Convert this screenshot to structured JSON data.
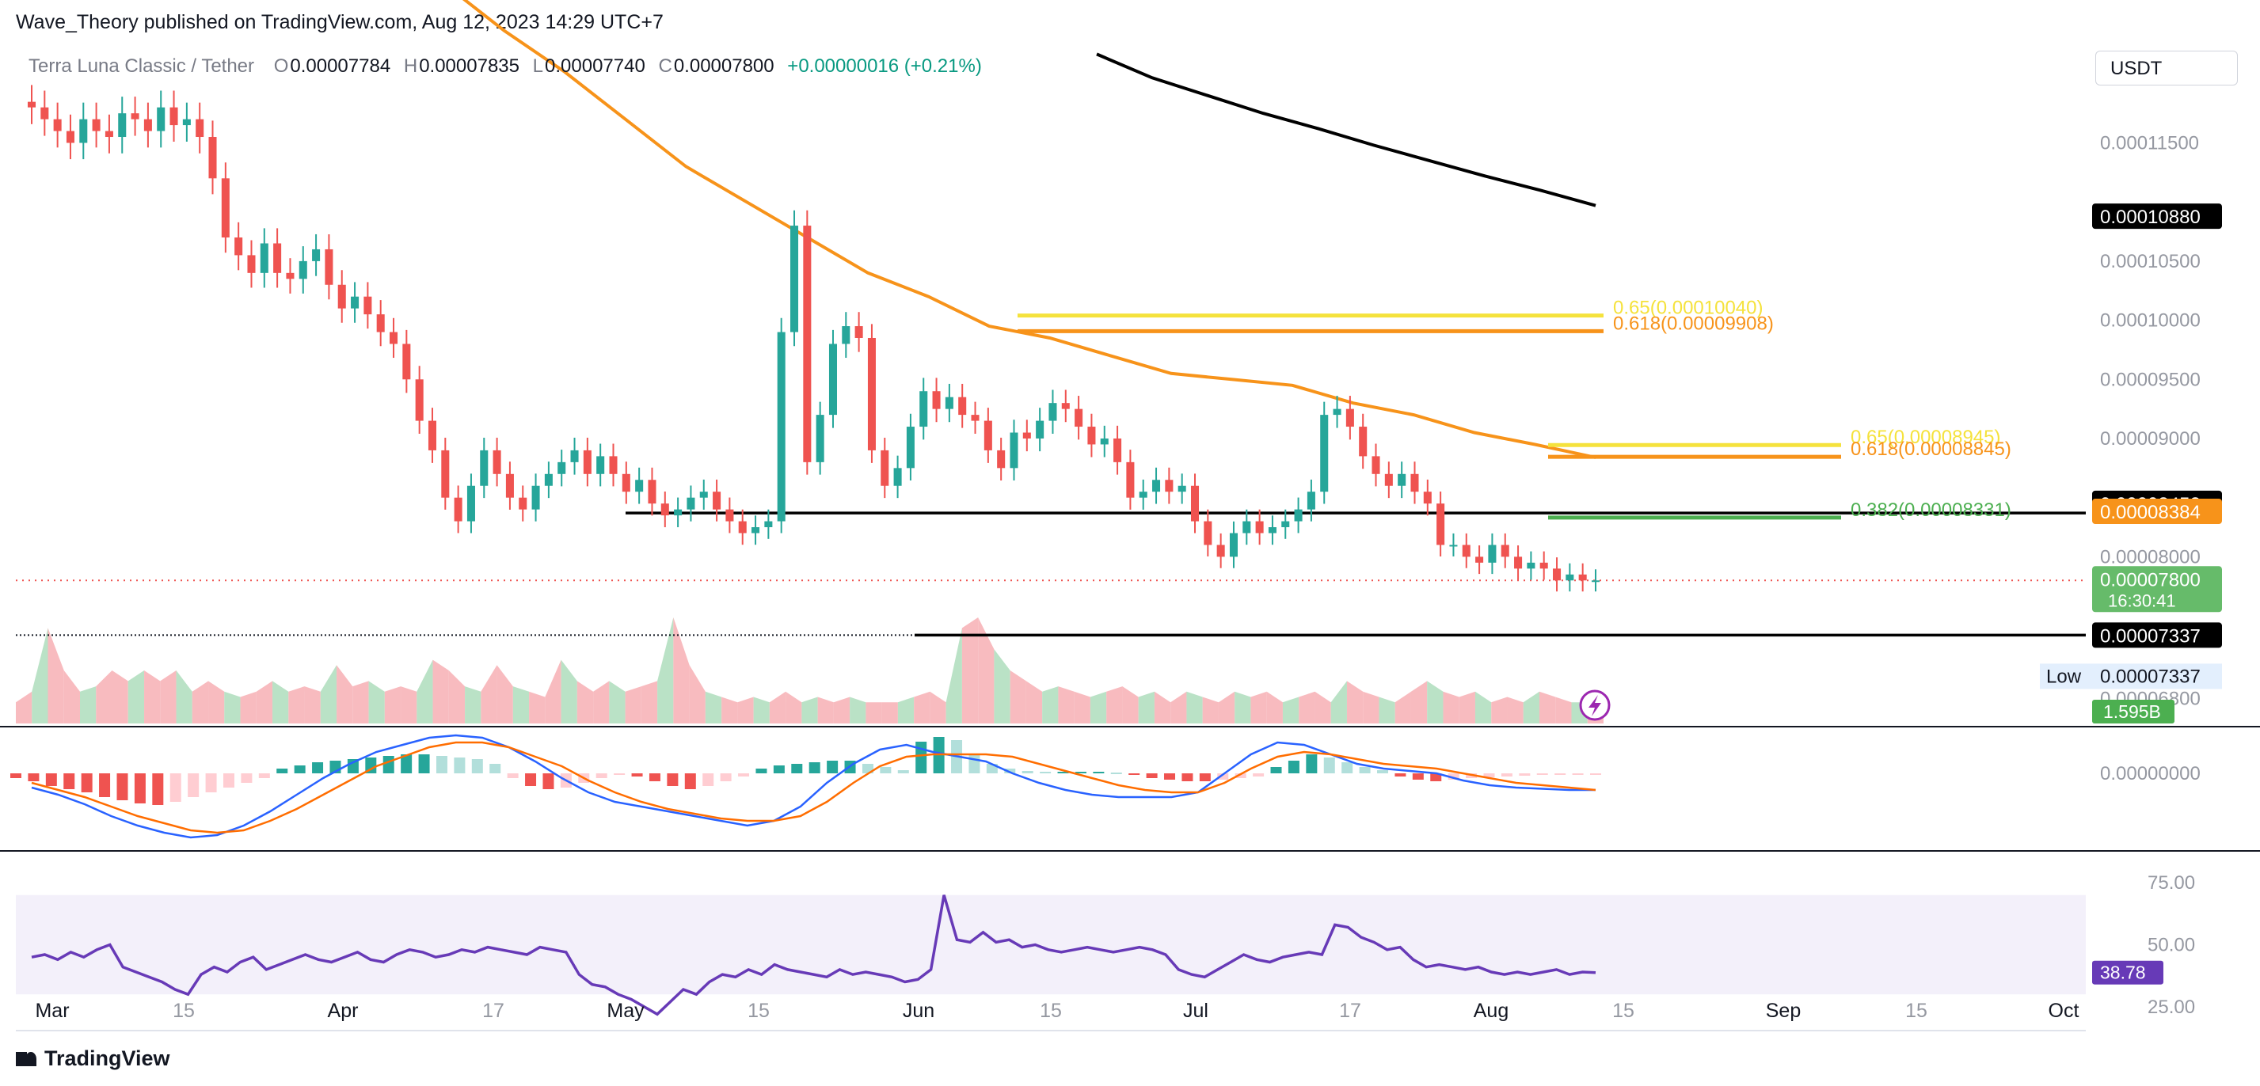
{
  "header": {
    "attribution": "Wave_Theory published on TradingView.com, Aug 12, 2023 14:29 UTC+7"
  },
  "ohlc": {
    "symbol": "Terra Luna Classic / Tether",
    "o_label": "O",
    "o": "0.00007784",
    "h_label": "H",
    "h": "0.00007835",
    "l_label": "L",
    "l": "0.00007740",
    "c_label": "C",
    "c": "0.00007800",
    "change": "+0.00000016 (+0.21%)"
  },
  "currency": "USDT",
  "footer": {
    "brand": "TradingView"
  },
  "colors": {
    "up": "#26a69a",
    "down": "#ef5350",
    "ema50": "#f7931a",
    "ema200": "#000000",
    "fib_yellow": "#f5e23c",
    "fib_orange": "#f7931a",
    "fib_green": "#4caf50",
    "macd_line": "#2962ff",
    "signal_line": "#ff6d00",
    "rsi": "#673ab7",
    "vol_up": "#b2dfc0",
    "vol_down": "#f7b4b8"
  },
  "chart_data": [
    {
      "type": "candlestick",
      "panel": "price",
      "x_axis_labels": [
        "Mar",
        "15",
        "Apr",
        "17",
        "May",
        "15",
        "Jun",
        "15",
        "Jul",
        "17",
        "Aug",
        "15",
        "Sep",
        "15",
        "Oct"
      ],
      "y_axis_labels": [
        "0.00011500",
        "0.00010500",
        "0.00010000",
        "0.00009500",
        "0.00009000",
        "0.00008000",
        "0.00006800"
      ],
      "ylim": [
        6.55e-05,
        0.0001234
      ],
      "last_price": 7.8e-05,
      "candle_closes_approx": [
        0.000118,
        0.000117,
        0.000116,
        0.000115,
        0.000117,
        0.000116,
        0.0001155,
        0.0001175,
        0.000117,
        0.000116,
        0.000118,
        0.0001165,
        0.000117,
        0.0001155,
        0.000112,
        0.000107,
        0.0001055,
        0.000104,
        0.0001065,
        0.000104,
        0.0001035,
        0.000105,
        0.000106,
        0.000103,
        0.000101,
        0.000102,
        0.0001005,
        9.9e-05,
        9.8e-05,
        9.5e-05,
        9.15e-05,
        8.9e-05,
        8.5e-05,
        8.3e-05,
        8.6e-05,
        8.9e-05,
        8.7e-05,
        8.5e-05,
        8.4e-05,
        8.6e-05,
        8.7e-05,
        8.8e-05,
        8.9e-05,
        8.7e-05,
        8.85e-05,
        8.7e-05,
        8.55e-05,
        8.65e-05,
        8.45e-05,
        8.35e-05,
        8.4e-05,
        8.5e-05,
        8.55e-05,
        8.4e-05,
        8.3e-05,
        8.2e-05,
        8.25e-05,
        8.3e-05,
        9.9e-05,
        0.000108,
        8.8e-05,
        9.2e-05,
        9.8e-05,
        9.95e-05,
        9.85e-05,
        8.9e-05,
        8.6e-05,
        8.75e-05,
        9.1e-05,
        9.4e-05,
        9.25e-05,
        9.35e-05,
        9.2e-05,
        9.15e-05,
        8.9e-05,
        8.75e-05,
        9.05e-05,
        9e-05,
        9.15e-05,
        9.3e-05,
        9.25e-05,
        9.1e-05,
        8.95e-05,
        9e-05,
        8.8e-05,
        8.5e-05,
        8.55e-05,
        8.65e-05,
        8.55e-05,
        8.6e-05,
        8.3e-05,
        8.1e-05,
        8e-05,
        8.2e-05,
        8.3e-05,
        8.2e-05,
        8.25e-05,
        8.3e-05,
        8.4e-05,
        8.55e-05,
        9.2e-05,
        9.25e-05,
        9.1e-05,
        8.85e-05,
        8.7e-05,
        8.6e-05,
        8.7e-05,
        8.55e-05,
        8.45e-05,
        8.1e-05,
        8.1e-05,
        8e-05,
        7.95e-05,
        8.1e-05,
        8e-05,
        7.9e-05,
        7.95e-05,
        7.9e-05,
        7.8e-05,
        7.85e-05,
        7.8e-05,
        7.8e-05
      ]
    },
    {
      "type": "line",
      "name": "EMA 50 (orange)",
      "values_approx": [
        0.0001285,
        0.0001245,
        0.000121,
        0.000117,
        0.000113,
        0.00011,
        0.000107,
        0.000104,
        0.000102,
        9.95e-05,
        9.85e-05,
        9.7e-05,
        9.55e-05,
        9.5e-05,
        9.45e-05,
        9.3e-05,
        9.2e-05,
        9.05e-05,
        8.95e-05,
        8.84e-05
      ]
    },
    {
      "type": "line",
      "name": "EMA 200 (black)",
      "values_approx": [
        0.0001225,
        0.0001205,
        0.000119,
        0.0001175,
        0.0001162,
        0.0001148,
        0.0001135,
        0.0001122,
        0.000111,
        0.0001097
      ]
    },
    {
      "type": "annotations",
      "horizontal_lines": [
        {
          "value": 8.37e-05,
          "color": "#000000"
        },
        {
          "value": 7.337e-05,
          "color": "#000000"
        }
      ],
      "fibonacci_levels": [
        {
          "label": "0.65(0.00010040)",
          "value": 0.0001004,
          "color": "#f5e23c"
        },
        {
          "label": "0.618(0.00009908)",
          "value": 9.908e-05,
          "color": "#f7931a"
        },
        {
          "label": "0.65(0.00008945)",
          "value": 8.945e-05,
          "color": "#f5e23c"
        },
        {
          "label": "0.618(0.00008845)",
          "value": 8.845e-05,
          "color": "#f7931a"
        },
        {
          "label": "0.382(0.00008331)",
          "value": 8.331e-05,
          "color": "#4caf50"
        }
      ],
      "price_tags": [
        {
          "label": "0.00010880",
          "bg": "#000000"
        },
        {
          "label": "0.00008452",
          "bg": "#000000"
        },
        {
          "label": "0.00008384",
          "bg": "#f7931a"
        },
        {
          "label": "0.00007800",
          "sub": "16:30:41",
          "bg": "#66bb6a"
        },
        {
          "label": "0.00007337",
          "bg": "#000000"
        }
      ],
      "low_label": "Low",
      "low_value": "0.00007337"
    },
    {
      "type": "area",
      "panel": "volume",
      "last_label": "1.595B",
      "values_approx": [
        0.2,
        0.3,
        0.9,
        0.5,
        0.3,
        0.35,
        0.5,
        0.4,
        0.5,
        0.4,
        0.5,
        0.3,
        0.4,
        0.3,
        0.25,
        0.3,
        0.4,
        0.3,
        0.35,
        0.3,
        0.55,
        0.35,
        0.4,
        0.3,
        0.35,
        0.3,
        0.6,
        0.5,
        0.35,
        0.3,
        0.55,
        0.35,
        0.3,
        0.25,
        0.6,
        0.4,
        0.3,
        0.4,
        0.3,
        0.35,
        0.4,
        1.0,
        0.55,
        0.3,
        0.25,
        0.2,
        0.25,
        0.2,
        0.3,
        0.2,
        0.25,
        0.2,
        0.25,
        0.2,
        0.2,
        0.2,
        0.25,
        0.3,
        0.2,
        0.9,
        1.0,
        0.7,
        0.5,
        0.4,
        0.3,
        0.35,
        0.3,
        0.25,
        0.3,
        0.35,
        0.25,
        0.3,
        0.2,
        0.3,
        0.25,
        0.2,
        0.3,
        0.25,
        0.3,
        0.2,
        0.25,
        0.3,
        0.2,
        0.4,
        0.3,
        0.25,
        0.2,
        0.3,
        0.4,
        0.3,
        0.25,
        0.3,
        0.2,
        0.25,
        0.2,
        0.3,
        0.25,
        0.2,
        0.2,
        0.15
      ]
    },
    {
      "type": "bar",
      "panel": "macd",
      "name": "MACD",
      "y_axis_labels": [
        "0.00000000"
      ],
      "histogram_approx": [
        -0.3,
        -0.5,
        -0.8,
        -1.0,
        -1.2,
        -1.5,
        -1.7,
        -1.9,
        -2.0,
        -1.8,
        -1.5,
        -1.2,
        -0.9,
        -0.6,
        -0.3,
        0.3,
        0.5,
        0.7,
        0.8,
        0.9,
        1.0,
        1.1,
        1.2,
        1.2,
        1.1,
        1.0,
        0.9,
        0.6,
        -0.3,
        -0.8,
        -1.0,
        -0.9,
        -0.6,
        -0.3,
        -0.1,
        -0.2,
        -0.5,
        -0.8,
        -1.0,
        -0.8,
        -0.5,
        -0.2,
        0.3,
        0.5,
        0.6,
        0.7,
        0.8,
        0.8,
        0.6,
        0.4,
        0.2,
        2.0,
        2.3,
        2.1,
        1.2,
        0.6,
        0.3,
        0.15,
        0.1,
        0.1,
        0.1,
        0.1,
        0.05,
        -0.1,
        -0.3,
        -0.4,
        -0.5,
        -0.5,
        -0.4,
        -0.3,
        -0.2,
        0.4,
        0.8,
        1.2,
        1.0,
        0.7,
        0.4,
        0.2,
        -0.2,
        -0.4,
        -0.5,
        -0.4,
        -0.3,
        -0.25,
        -0.2,
        -0.15,
        -0.1,
        -0.08,
        -0.05,
        -0.03
      ],
      "macd_line_approx": [
        -0.6,
        -0.9,
        -1.3,
        -1.8,
        -2.2,
        -2.5,
        -2.7,
        -2.6,
        -2.2,
        -1.6,
        -0.9,
        -0.2,
        0.4,
        0.9,
        1.2,
        1.5,
        1.6,
        1.5,
        1.1,
        0.5,
        -0.2,
        -0.8,
        -1.2,
        -1.4,
        -1.6,
        -1.8,
        -2.0,
        -2.2,
        -2.0,
        -1.4,
        -0.4,
        0.4,
        1.0,
        1.2,
        0.9,
        0.7,
        0.5,
        0.0,
        -0.4,
        -0.7,
        -0.9,
        -1.0,
        -1.0,
        -1.0,
        -0.8,
        0.0,
        0.8,
        1.3,
        1.2,
        0.8,
        0.4,
        0.2,
        0.1,
        0.0,
        -0.3,
        -0.5,
        -0.6,
        -0.65,
        -0.7,
        -0.7
      ],
      "signal_line_approx": [
        -0.4,
        -0.7,
        -1.0,
        -1.4,
        -1.8,
        -2.1,
        -2.4,
        -2.5,
        -2.4,
        -2.0,
        -1.5,
        -0.9,
        -0.3,
        0.3,
        0.7,
        1.1,
        1.3,
        1.3,
        1.1,
        0.7,
        0.3,
        -0.3,
        -0.8,
        -1.2,
        -1.5,
        -1.7,
        -1.9,
        -2.0,
        -2.0,
        -1.8,
        -1.2,
        -0.4,
        0.3,
        0.7,
        0.8,
        0.8,
        0.8,
        0.7,
        0.4,
        0.1,
        -0.2,
        -0.5,
        -0.7,
        -0.8,
        -0.8,
        -0.4,
        0.2,
        0.7,
        0.9,
        0.8,
        0.6,
        0.4,
        0.3,
        0.2,
        0.0,
        -0.2,
        -0.4,
        -0.5,
        -0.6,
        -0.7
      ]
    },
    {
      "type": "line",
      "panel": "rsi",
      "name": "RSI",
      "y_axis_labels": [
        "75.00",
        "50.00",
        "25.00"
      ],
      "ylim": [
        17,
        83
      ],
      "band": [
        30,
        70
      ],
      "last_label": "38.78",
      "values_approx": [
        45,
        46,
        44,
        47,
        45,
        48,
        50,
        41,
        39,
        37,
        35,
        32,
        30,
        38,
        41,
        39,
        43,
        45,
        40,
        42,
        44,
        46,
        44,
        43,
        45,
        47,
        44,
        43,
        46,
        48,
        47,
        45,
        46,
        48,
        47,
        49,
        48,
        47,
        46,
        49,
        48,
        47,
        38,
        34,
        33,
        30,
        28,
        25,
        22,
        27,
        32,
        30,
        35,
        38,
        37,
        40,
        38,
        42,
        40,
        39,
        38,
        37,
        40,
        38,
        39,
        38,
        37,
        35,
        36,
        40,
        70,
        52,
        51,
        55,
        51,
        52,
        49,
        50,
        48,
        47,
        48,
        49,
        48,
        47,
        48,
        49,
        48,
        46,
        40,
        38,
        37,
        40,
        43,
        46,
        44,
        43,
        45,
        46,
        47,
        46,
        58,
        57,
        53,
        51,
        48,
        49,
        44,
        41,
        42,
        41,
        40,
        41,
        39,
        38,
        39,
        38,
        39,
        40,
        38,
        39,
        38.78
      ]
    }
  ]
}
